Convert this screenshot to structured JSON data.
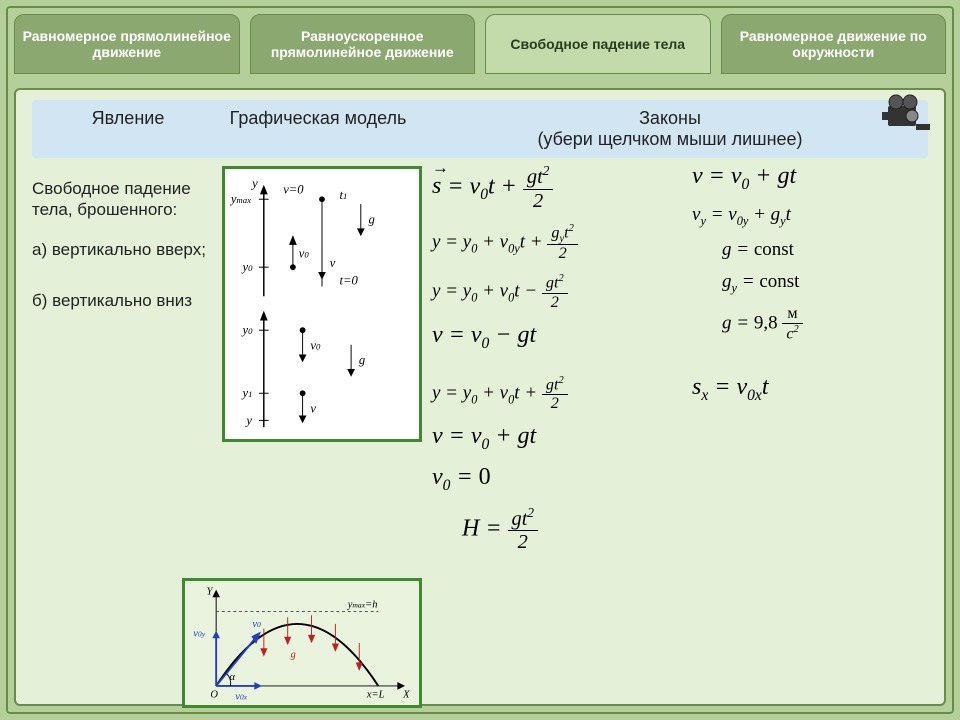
{
  "tabs": [
    {
      "label": "Равномерное прямолинейное движение",
      "active": false
    },
    {
      "label": "Равноускоренное прямолинейное движение",
      "active": false
    },
    {
      "label": "Свободное падение тела",
      "active": true
    },
    {
      "label": "Равномерное движение по окружности",
      "active": false
    }
  ],
  "table_header": {
    "col1": "Явление",
    "col2": "Графическая модель",
    "col3": "Законы\n(убери щелчком мыши лишнее)"
  },
  "phenomenon": {
    "title": "Свободное падение тела, брошенного:",
    "a": "а) вертикально вверх;",
    "b": "б) вертикально вниз"
  },
  "formulas_left": [
    {
      "id": "s-eq",
      "size": "fbig",
      "html": "<span class='vec'>s</span> = v<sub>0</sub>t + <span class='frac'><span class='num'>gt<sup>2</sup></span><span class='den'>2</span></span>"
    },
    {
      "id": "y-full",
      "size": "fmed",
      "html": "y = y<sub>0</sub> + v<sub>0y</sub>t + <span class='frac'><span class='num'>g<sub>y</sub>t<sup>2</sup></span><span class='den'>2</span></span>"
    },
    {
      "id": "y-minus",
      "size": "fmed",
      "html": "y = y<sub>0</sub> + v<sub>0</sub>t − <span class='frac'><span class='num'>gt<sup>2</sup></span><span class='den'>2</span></span>"
    },
    {
      "id": "v-minus",
      "size": "fbig",
      "html": "v = v<sub>0</sub> − gt"
    },
    {
      "id": "y-plus",
      "size": "fmed",
      "html": "y = y<sub>0</sub> + v<sub>0</sub>t + <span class='frac'><span class='num'>gt<sup>2</sup></span><span class='den'>2</span></span>"
    },
    {
      "id": "v-plus",
      "size": "fbig",
      "html": "v = v<sub>0</sub> + gt"
    },
    {
      "id": "v0-zero",
      "size": "fbig",
      "html": "v<sub>0</sub> = <span class='rom'>0</span>"
    },
    {
      "id": "H-eq",
      "size": "fbig",
      "html": "H = <span class='frac'><span class='num'>gt<sup>2</sup></span><span class='den'>2</span></span>"
    }
  ],
  "formulas_right": [
    {
      "id": "v-eq-gt",
      "size": "fbig",
      "html": "v = v<sub>0</sub> + gt"
    },
    {
      "id": "vy-eq",
      "size": "fmed",
      "html": "v<sub>y</sub> = v<sub>0y</sub> + g<sub>y</sub>t"
    },
    {
      "id": "g-const",
      "size": "fmed",
      "html": "g = <span class='rom'>const</span>"
    },
    {
      "id": "gy-const",
      "size": "fmed",
      "html": "g<sub>y</sub> = <span class='rom'>const</span>"
    },
    {
      "id": "g-98",
      "size": "fmed",
      "html": "g = <span class='rom'>9,8</span> <span class='frac'><span class='num rom'>м</span><span class='den'>c<sup>2</sup></span></span>"
    },
    {
      "id": "sx-eq",
      "size": "fbig",
      "html": "s<sub>x</sub> = v<sub>0x</sub>t"
    }
  ],
  "colors": {
    "page_bg": "#b4cf9a",
    "panel_bg": "#e5f0d8",
    "header_bg": "#d2e5f2",
    "tab_bg": "#8ca871",
    "tab_active_bg": "#c3dbab",
    "border": "#6a8c4a",
    "diagram_border": "#3f8a2e"
  },
  "diagram1_labels": [
    "y",
    "y_max",
    "y_0",
    "v=0",
    "t_1",
    "g",
    "v_0",
    "v",
    "t=0",
    "y_0",
    "y_1",
    "y"
  ],
  "diagram2_labels": [
    "Y",
    "v_0y",
    "v_0",
    "α",
    "O",
    "v_0x",
    "g",
    "y_max=h",
    "x=L",
    "X"
  ]
}
